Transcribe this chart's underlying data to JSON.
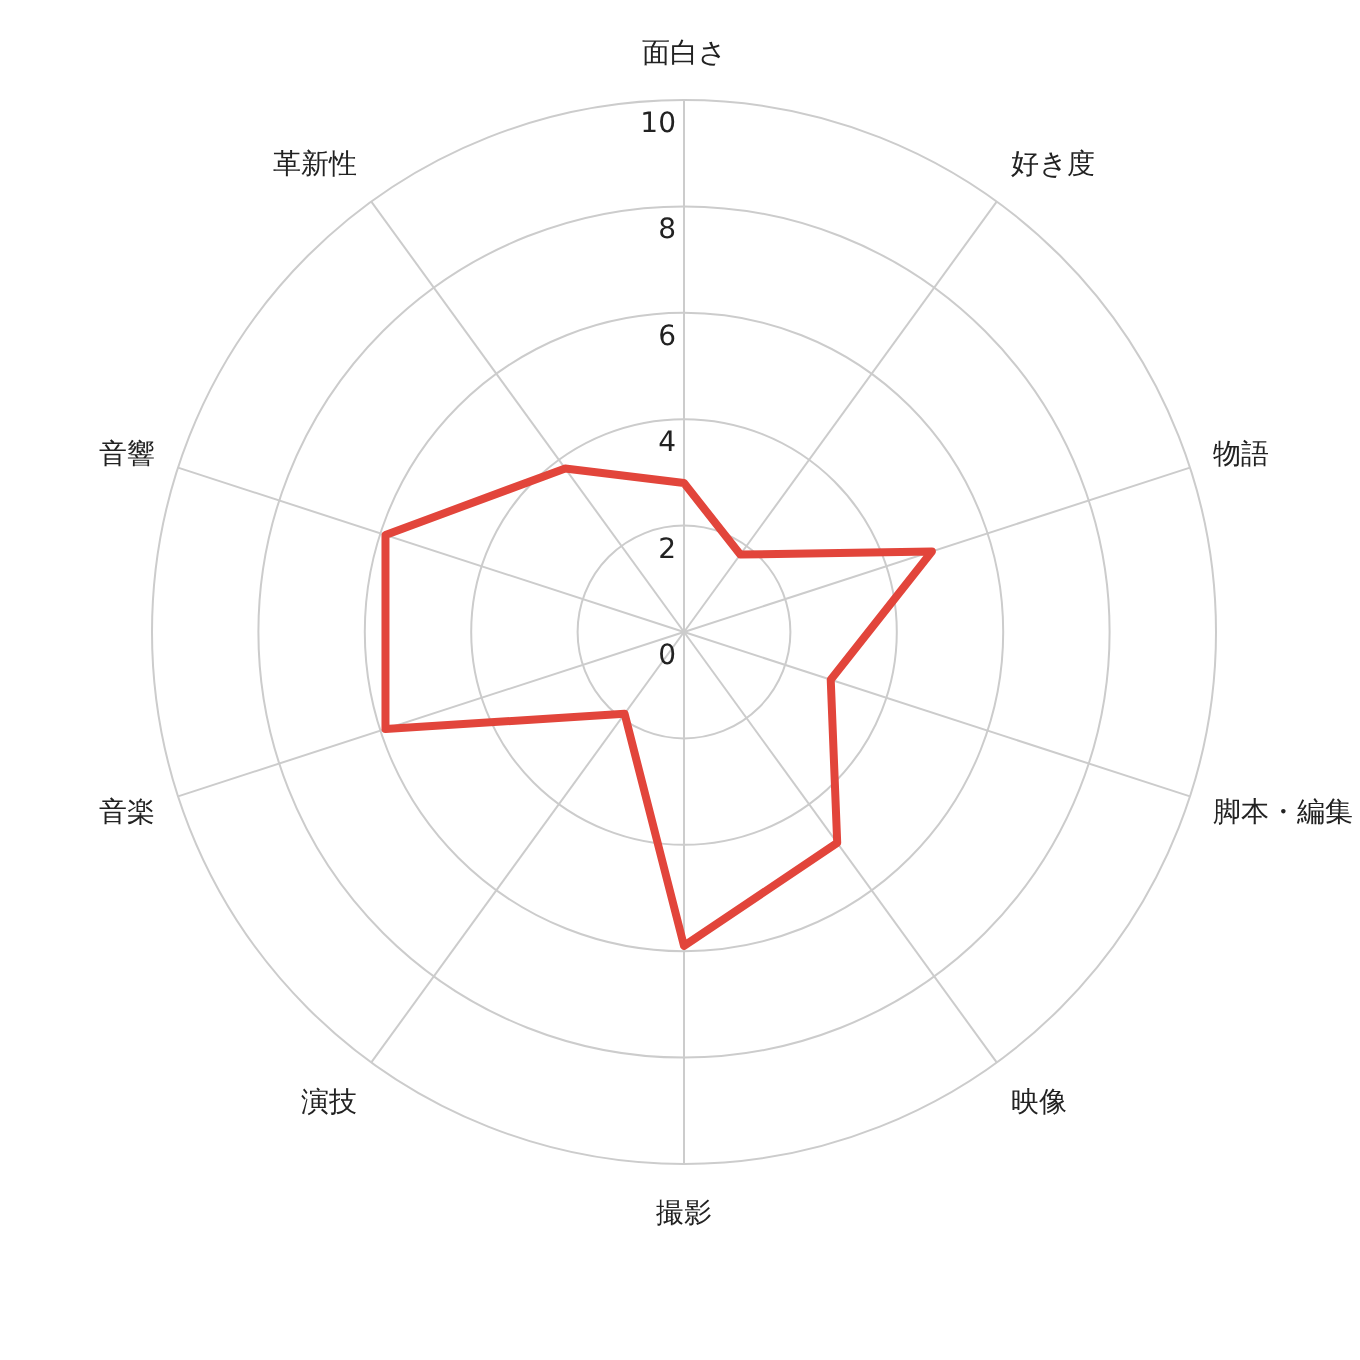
{
  "chart_data": {
    "type": "radar",
    "categories": [
      "面白さ",
      "好き度",
      "物語",
      "脚本・編集",
      "映像",
      "撮影",
      "演技",
      "音楽",
      "音響",
      "革新性"
    ],
    "series": [
      {
        "color": "#e2453b",
        "values": [
          2.8,
          1.8,
          4.9,
          2.9,
          4.9,
          5.9,
          1.9,
          5.9,
          5.9,
          3.8
        ]
      }
    ],
    "ylim": [
      0,
      10
    ],
    "yticks": [
      0,
      2,
      4,
      6,
      8,
      10
    ],
    "grid": true,
    "marker": "none",
    "line_style": "solid"
  }
}
